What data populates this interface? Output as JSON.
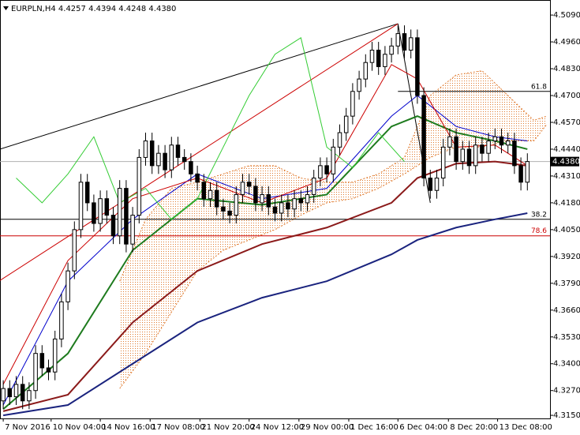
{
  "chart_data": {
    "type": "candlestick",
    "title": "EURPLN,H4 4.4257 4.4394 4.4248 4.4380",
    "up_color": "#ffffff",
    "down_color": "#000000",
    "xlim": [
      -0.5,
      84.5
    ],
    "ylim": [
      4.3135,
      4.5163
    ],
    "yticks": [
      {
        "value": 4.509,
        "label": "4.5090"
      },
      {
        "value": 4.496,
        "label": "4.4960"
      },
      {
        "value": 4.483,
        "label": "4.4830"
      },
      {
        "value": 4.47,
        "label": "4.4700"
      },
      {
        "value": 4.457,
        "label": "4.4570"
      },
      {
        "value": 4.444,
        "label": "4.4440"
      },
      {
        "value": 4.431,
        "label": "4.4310"
      },
      {
        "value": 4.418,
        "label": "4.4180"
      },
      {
        "value": 4.405,
        "label": "4.4050"
      },
      {
        "value": 4.392,
        "label": "4.3920"
      },
      {
        "value": 4.379,
        "label": "4.3790"
      },
      {
        "value": 4.366,
        "label": "4.3660"
      },
      {
        "value": 4.353,
        "label": "4.3530"
      },
      {
        "value": 4.34,
        "label": "4.3400"
      },
      {
        "value": 4.327,
        "label": "4.3270"
      },
      {
        "value": 4.315,
        "label": "4.3150"
      }
    ],
    "xticks": [
      {
        "value": 0,
        "label": "7 Nov 2016"
      },
      {
        "value": 7.4,
        "label": "10 Nov 04:00"
      },
      {
        "value": 15,
        "label": "14 Nov 16:00"
      },
      {
        "value": 22.7,
        "label": "17 Nov 08:00"
      },
      {
        "value": 30.4,
        "label": "21 Nov 20:00"
      },
      {
        "value": 38,
        "label": "24 Nov 12:00"
      },
      {
        "value": 45.7,
        "label": "29 Nov 00:00"
      },
      {
        "value": 53.4,
        "label": "1 Dec 16:00"
      },
      {
        "value": 61,
        "label": "6 Dec 04:00"
      },
      {
        "value": 68.8,
        "label": "8 Dec 20:00"
      },
      {
        "value": 76.4,
        "label": "13 Dec 08:00"
      }
    ],
    "last_price": {
      "value": 4.438,
      "label": "4.4380"
    },
    "open": [
      4.322,
      4.328,
      4.324,
      4.33,
      4.322,
      4.327,
      4.345,
      4.338,
      4.336,
      4.352,
      4.37,
      4.385,
      4.405,
      4.428,
      4.418,
      4.408,
      4.42,
      4.412,
      4.402,
      4.425,
      4.398,
      4.412,
      4.44,
      4.448,
      4.436,
      4.442,
      4.434,
      4.446,
      4.44,
      4.438,
      4.432,
      4.428,
      4.42,
      4.424,
      4.416,
      4.414,
      4.412,
      4.422,
      4.428,
      4.426,
      4.418,
      4.422,
      4.416,
      4.413,
      4.418,
      4.415,
      4.42,
      4.418,
      4.422,
      4.43,
      4.436,
      4.432,
      4.445,
      4.452,
      4.46,
      4.472,
      4.478,
      4.486,
      4.492,
      4.484,
      4.49,
      4.494,
      4.5,
      4.492,
      4.498,
      4.47,
      4.43,
      4.424,
      4.43,
      4.445,
      4.45,
      4.438,
      4.444,
      4.436,
      4.446,
      4.442,
      4.448,
      4.45,
      4.446,
      4.448,
      4.436,
      4.428
    ],
    "high": [
      4.332,
      4.332,
      4.334,
      4.334,
      4.331,
      4.349,
      4.349,
      4.342,
      4.356,
      4.374,
      4.389,
      4.409,
      4.432,
      4.432,
      4.422,
      4.424,
      4.424,
      4.416,
      4.429,
      4.429,
      4.416,
      4.444,
      4.452,
      4.452,
      4.446,
      4.446,
      4.45,
      4.45,
      4.444,
      4.442,
      4.436,
      4.432,
      4.428,
      4.428,
      4.42,
      4.418,
      4.426,
      4.432,
      4.432,
      4.43,
      4.426,
      4.426,
      4.42,
      4.422,
      4.422,
      4.424,
      4.424,
      4.426,
      4.434,
      4.44,
      4.44,
      4.449,
      4.456,
      4.464,
      4.476,
      4.482,
      4.49,
      4.496,
      4.496,
      4.494,
      4.498,
      4.504,
      4.504,
      4.502,
      4.502,
      4.474,
      4.434,
      4.434,
      4.449,
      4.454,
      4.454,
      4.448,
      4.448,
      4.45,
      4.45,
      4.452,
      4.454,
      4.454,
      4.452,
      4.452,
      4.44,
      4.442
    ],
    "low": [
      4.318,
      4.32,
      4.32,
      4.318,
      4.318,
      4.323,
      4.334,
      4.332,
      4.332,
      4.348,
      4.366,
      4.381,
      4.401,
      4.414,
      4.404,
      4.404,
      4.408,
      4.398,
      4.398,
      4.394,
      4.394,
      4.408,
      4.436,
      4.432,
      4.432,
      4.43,
      4.43,
      4.436,
      4.434,
      4.428,
      4.424,
      4.416,
      4.416,
      4.412,
      4.41,
      4.408,
      4.408,
      4.418,
      4.422,
      4.414,
      4.414,
      4.412,
      4.409,
      4.409,
      4.411,
      4.411,
      4.414,
      4.414,
      4.418,
      4.426,
      4.428,
      4.428,
      4.441,
      4.448,
      4.456,
      4.468,
      4.474,
      4.482,
      4.48,
      4.48,
      4.486,
      4.49,
      4.488,
      4.488,
      4.466,
      4.426,
      4.42,
      4.42,
      4.426,
      4.441,
      4.434,
      4.434,
      4.432,
      4.432,
      4.438,
      4.438,
      4.444,
      4.442,
      4.442,
      4.432,
      4.424,
      4.424
    ],
    "close": [
      4.328,
      4.324,
      4.33,
      4.322,
      4.327,
      4.345,
      4.338,
      4.336,
      4.352,
      4.37,
      4.385,
      4.405,
      4.428,
      4.418,
      4.408,
      4.42,
      4.412,
      4.402,
      4.425,
      4.398,
      4.412,
      4.44,
      4.448,
      4.436,
      4.442,
      4.434,
      4.446,
      4.44,
      4.438,
      4.432,
      4.428,
      4.42,
      4.424,
      4.416,
      4.414,
      4.412,
      4.422,
      4.428,
      4.426,
      4.418,
      4.422,
      4.416,
      4.413,
      4.418,
      4.415,
      4.42,
      4.418,
      4.422,
      4.43,
      4.436,
      4.432,
      4.445,
      4.452,
      4.46,
      4.472,
      4.478,
      4.486,
      4.492,
      4.484,
      4.49,
      4.494,
      4.5,
      4.492,
      4.498,
      4.47,
      4.43,
      4.424,
      4.43,
      4.445,
      4.45,
      4.438,
      4.444,
      4.436,
      4.446,
      4.442,
      4.448,
      4.45,
      4.446,
      4.448,
      4.436,
      4.428,
      4.438
    ],
    "cloud": {
      "color": "#e07a2e",
      "x": [
        18,
        22,
        26,
        30,
        34,
        38,
        42,
        46,
        50,
        54,
        58,
        62,
        66,
        70,
        74,
        78,
        82,
        84
      ],
      "upper": [
        4.38,
        4.41,
        4.425,
        4.428,
        4.432,
        4.436,
        4.436,
        4.43,
        4.428,
        4.428,
        4.432,
        4.44,
        4.47,
        4.48,
        4.482,
        4.47,
        4.458,
        4.46
      ],
      "lower": [
        4.328,
        4.345,
        4.365,
        4.385,
        4.395,
        4.4,
        4.405,
        4.412,
        4.418,
        4.42,
        4.425,
        4.432,
        4.44,
        4.445,
        4.445,
        4.448,
        4.448,
        4.456
      ]
    },
    "series": [
      {
        "color": "#1a237e",
        "width": 2,
        "x": [
          0,
          10,
          20,
          30,
          40,
          50,
          60,
          64,
          70,
          76,
          81
        ],
        "values": [
          4.315,
          4.32,
          4.34,
          4.36,
          4.372,
          4.38,
          4.393,
          4.4,
          4.406,
          4.41,
          4.413
        ]
      },
      {
        "color": "#8b1a1a",
        "width": 2,
        "x": [
          0,
          10,
          20,
          30,
          40,
          50,
          60,
          64,
          70,
          76,
          81
        ],
        "values": [
          4.317,
          4.325,
          4.36,
          4.385,
          4.398,
          4.406,
          4.418,
          4.43,
          4.437,
          4.438,
          4.436
        ]
      },
      {
        "color": "#1e7b1e",
        "width": 2,
        "x": [
          0,
          10,
          20,
          30,
          40,
          50,
          60,
          64,
          70,
          76,
          81
        ],
        "values": [
          4.318,
          4.345,
          4.395,
          4.42,
          4.417,
          4.422,
          4.455,
          4.46,
          4.452,
          4.448,
          4.444
        ]
      },
      {
        "color": "#0000cc",
        "width": 1,
        "x": [
          0,
          10,
          20,
          30,
          40,
          50,
          60,
          64,
          70,
          76,
          81
        ],
        "values": [
          4.32,
          4.38,
          4.41,
          4.432,
          4.42,
          4.425,
          4.46,
          4.47,
          4.455,
          4.45,
          4.448
        ]
      },
      {
        "color": "#cc0000",
        "width": 1,
        "x": [
          0,
          10,
          20,
          30,
          40,
          50,
          60,
          64,
          70,
          76,
          81
        ],
        "values": [
          4.33,
          4.39,
          4.42,
          4.43,
          4.418,
          4.43,
          4.485,
          4.478,
          4.445,
          4.446,
          4.436
        ]
      },
      {
        "color": "#33cc33",
        "width": 1,
        "x": [
          2,
          6,
          10,
          14,
          18,
          22,
          26,
          30,
          34,
          38,
          42,
          46,
          50,
          54,
          58,
          62
        ],
        "values": [
          4.43,
          4.418,
          4.432,
          4.45,
          4.418,
          4.425,
          4.41,
          4.42,
          4.445,
          4.47,
          4.49,
          4.498,
          4.445,
          4.435,
          4.452,
          4.438
        ]
      }
    ],
    "trendlines": [
      {
        "color": "#000000",
        "x": [
          -0.5,
          61
        ],
        "values": [
          4.444,
          4.5048
        ]
      },
      {
        "color": "#cc0000",
        "x": [
          -0.5,
          61
        ],
        "values": [
          4.3804,
          4.5048
        ]
      },
      {
        "color": "#000000",
        "x": [
          61,
          66
        ],
        "values": [
          4.5048,
          4.418
        ]
      }
    ],
    "levels": [
      {
        "label": "61.8",
        "value": 4.472,
        "x_start": 61,
        "color": "#000000"
      },
      {
        "label": "38.2",
        "value": 4.41,
        "x_start": -0.5,
        "color": "#000000"
      },
      {
        "label": "78.6",
        "value": 4.402,
        "x_start": -0.5,
        "color": "#cc0000"
      }
    ]
  }
}
